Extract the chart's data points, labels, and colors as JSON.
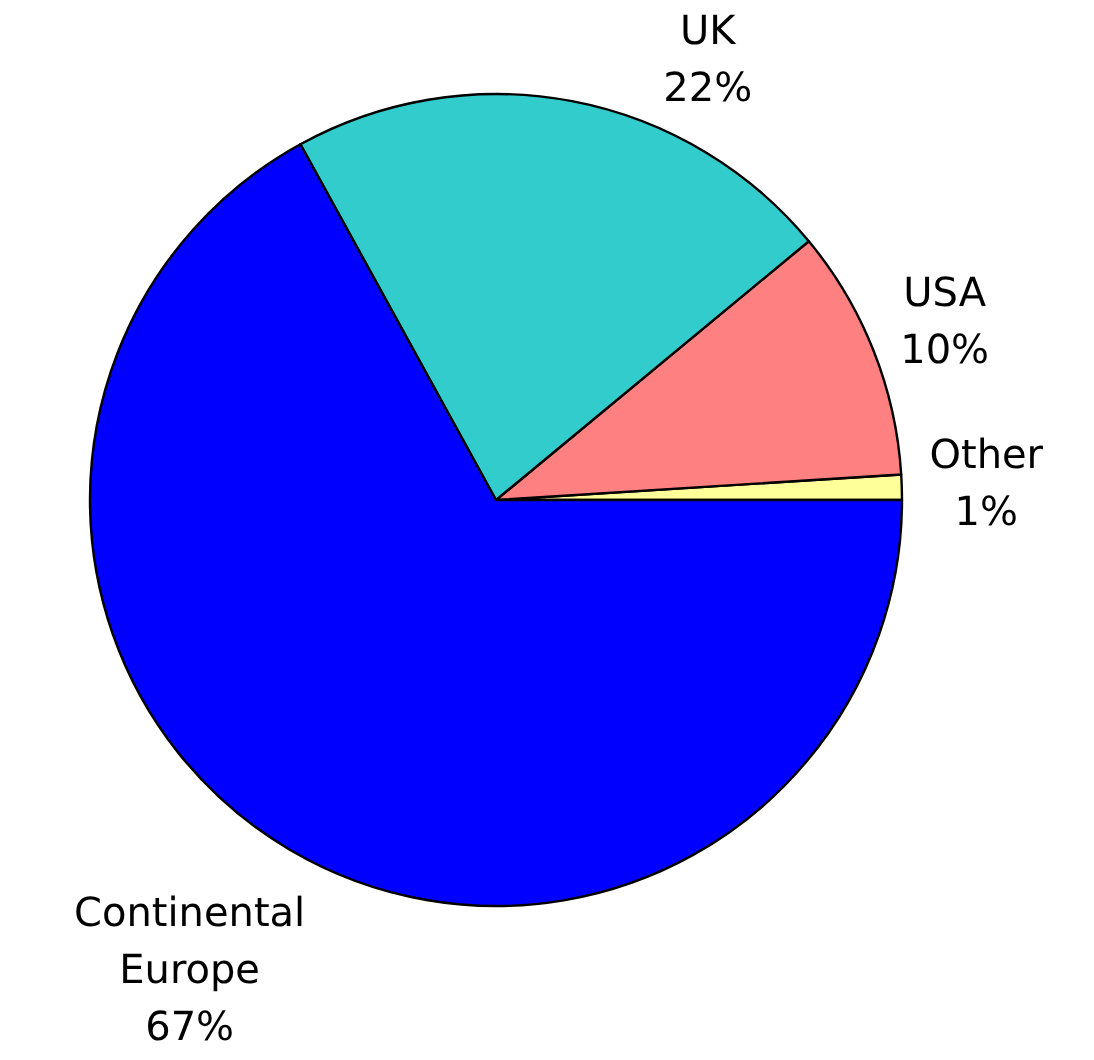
{
  "chart_data": {
    "type": "pie",
    "categories": [
      "Other",
      "USA",
      "UK",
      "Continental Europe"
    ],
    "values": [
      1,
      10,
      22,
      67
    ],
    "value_labels": [
      "1%",
      "10%",
      "22%",
      "67%"
    ],
    "colors": [
      "#ffff99",
      "#ff8080",
      "#33cccc",
      "#0000ff"
    ]
  }
}
